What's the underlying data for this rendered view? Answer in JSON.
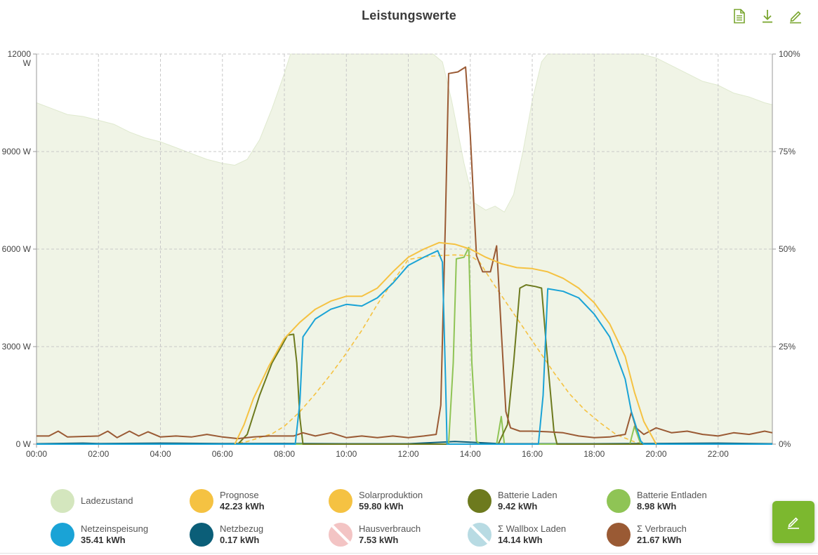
{
  "header": {
    "title": "Leistungswerte",
    "tools": [
      {
        "name": "document-icon"
      },
      {
        "name": "download-icon"
      },
      {
        "name": "edit-icon"
      }
    ]
  },
  "colors": {
    "ladezustand": "#d4e6be",
    "prognose": "#f5c242",
    "solar": "#f5c242",
    "batterie_laden": "#6d7a1e",
    "batterie_entladen": "#8fc455",
    "netzeinspeisung": "#1aa3d6",
    "netzbezug": "#0b5e78",
    "hausverbrauch": "#f3c4c4",
    "wallbox": "#b8dbe3",
    "verbrauch": "#9a5a34",
    "accent": "#7cb82f"
  },
  "chart_data": {
    "type": "line",
    "x_unit": "hour",
    "xlim": [
      0,
      23.75
    ],
    "x_ticks": [
      "00:00",
      "02:00",
      "04:00",
      "06:00",
      "08:00",
      "10:00",
      "12:00",
      "14:00",
      "16:00",
      "18:00",
      "20:00",
      "22:00"
    ],
    "y_left": {
      "lim": [
        0,
        12000
      ],
      "ticks": [
        "0 W",
        "3000 W",
        "6000 W",
        "9000 W",
        "12000\nW"
      ]
    },
    "y_right": {
      "lim": [
        0,
        100
      ],
      "ticks": [
        "0%",
        "25%",
        "50%",
        "75%",
        "100%"
      ]
    },
    "grid": true,
    "series": [
      {
        "name": "Ladezustand",
        "axis": "right",
        "style": "area",
        "color_key": "ladezustand",
        "points": [
          [
            0,
            87.5
          ],
          [
            0.5,
            86
          ],
          [
            1,
            84.5
          ],
          [
            1.5,
            84
          ],
          [
            2,
            83
          ],
          [
            2.5,
            82
          ],
          [
            3,
            80
          ],
          [
            3.5,
            78.5
          ],
          [
            4,
            77.5
          ],
          [
            4.5,
            76
          ],
          [
            5,
            74.5
          ],
          [
            5.5,
            73
          ],
          [
            6,
            72
          ],
          [
            6.4,
            71.5
          ],
          [
            6.8,
            73
          ],
          [
            7.2,
            78
          ],
          [
            7.6,
            86
          ],
          [
            8,
            95
          ],
          [
            8.2,
            100
          ],
          [
            12.8,
            100
          ],
          [
            13.1,
            98
          ],
          [
            13.4,
            88
          ],
          [
            13.8,
            72
          ],
          [
            14.1,
            62
          ],
          [
            14.5,
            60
          ],
          [
            14.8,
            61
          ],
          [
            15.1,
            59.5
          ],
          [
            15.4,
            64
          ],
          [
            15.7,
            75
          ],
          [
            16,
            88
          ],
          [
            16.3,
            98
          ],
          [
            16.5,
            100
          ],
          [
            19.5,
            100
          ],
          [
            20,
            99
          ],
          [
            20.5,
            97
          ],
          [
            21,
            95
          ],
          [
            21.5,
            93
          ],
          [
            22,
            92
          ],
          [
            22.5,
            90
          ],
          [
            23,
            89
          ],
          [
            23.5,
            87.5
          ],
          [
            23.75,
            87
          ]
        ]
      },
      {
        "name": "Prognose",
        "axis": "left",
        "style": "dashed",
        "color_key": "prognose",
        "points": [
          [
            6.3,
            0
          ],
          [
            6.8,
            80
          ],
          [
            7.2,
            200
          ],
          [
            7.6,
            320
          ],
          [
            8,
            550
          ],
          [
            8.5,
            1000
          ],
          [
            9,
            1550
          ],
          [
            9.5,
            2150
          ],
          [
            10,
            2800
          ],
          [
            10.5,
            3500
          ],
          [
            11,
            4300
          ],
          [
            11.5,
            5000
          ],
          [
            12,
            5680
          ],
          [
            12.5,
            5760
          ],
          [
            13,
            5800
          ],
          [
            13.5,
            5820
          ],
          [
            14,
            5800
          ],
          [
            14.3,
            5600
          ],
          [
            14.7,
            5000
          ],
          [
            15.2,
            4300
          ],
          [
            15.7,
            3600
          ],
          [
            16.2,
            2900
          ],
          [
            16.7,
            2200
          ],
          [
            17.2,
            1550
          ],
          [
            17.7,
            1050
          ],
          [
            18.2,
            650
          ],
          [
            18.7,
            300
          ],
          [
            19.3,
            70
          ],
          [
            19.6,
            0
          ]
        ]
      },
      {
        "name": "Solarproduktion",
        "axis": "left",
        "style": "solid",
        "color_key": "solar",
        "points": [
          [
            6.4,
            0
          ],
          [
            6.7,
            600
          ],
          [
            7,
            1400
          ],
          [
            7.5,
            2400
          ],
          [
            8,
            3250
          ],
          [
            8.5,
            3750
          ],
          [
            9,
            4150
          ],
          [
            9.5,
            4400
          ],
          [
            10,
            4550
          ],
          [
            10.5,
            4550
          ],
          [
            11,
            4800
          ],
          [
            11.5,
            5300
          ],
          [
            12,
            5750
          ],
          [
            12.5,
            6000
          ],
          [
            13,
            6200
          ],
          [
            13.5,
            6150
          ],
          [
            14,
            6000
          ],
          [
            14.5,
            5750
          ],
          [
            15,
            5550
          ],
          [
            15.5,
            5430
          ],
          [
            16,
            5400
          ],
          [
            16.5,
            5300
          ],
          [
            17,
            5100
          ],
          [
            17.5,
            4800
          ],
          [
            18,
            4350
          ],
          [
            18.5,
            3700
          ],
          [
            19,
            2700
          ],
          [
            19.3,
            1600
          ],
          [
            19.6,
            700
          ],
          [
            20,
            0
          ]
        ]
      },
      {
        "name": "Netzeinspeisung",
        "axis": "left",
        "style": "solid",
        "color_key": "netzeinspeisung",
        "points": [
          [
            0,
            0
          ],
          [
            8.35,
            0
          ],
          [
            8.5,
            1300
          ],
          [
            8.6,
            3300
          ],
          [
            9,
            3850
          ],
          [
            9.5,
            4150
          ],
          [
            10,
            4300
          ],
          [
            10.5,
            4250
          ],
          [
            11,
            4500
          ],
          [
            11.5,
            4950
          ],
          [
            12,
            5500
          ],
          [
            12.5,
            5750
          ],
          [
            12.95,
            5950
          ],
          [
            13.1,
            5600
          ],
          [
            13.2,
            2000
          ],
          [
            13.25,
            0
          ],
          [
            16.2,
            0
          ],
          [
            16.35,
            1500
          ],
          [
            16.5,
            4780
          ],
          [
            17,
            4700
          ],
          [
            17.5,
            4500
          ],
          [
            18,
            4000
          ],
          [
            18.5,
            3300
          ],
          [
            19,
            2000
          ],
          [
            19.2,
            1000
          ],
          [
            19.5,
            100
          ],
          [
            19.6,
            0
          ],
          [
            23.75,
            0
          ]
        ]
      },
      {
        "name": "Netzbezug",
        "axis": "left",
        "style": "solid",
        "color_key": "netzbezug",
        "points": [
          [
            0,
            10
          ],
          [
            1.5,
            30
          ],
          [
            2,
            15
          ],
          [
            4,
            30
          ],
          [
            6,
            15
          ],
          [
            8,
            20
          ],
          [
            10,
            10
          ],
          [
            12,
            10
          ],
          [
            13.5,
            80
          ],
          [
            14,
            60
          ],
          [
            15,
            10
          ],
          [
            16,
            10
          ],
          [
            18,
            10
          ],
          [
            20,
            20
          ],
          [
            22,
            30
          ],
          [
            23.75,
            10
          ]
        ]
      },
      {
        "name": "Batterie Laden",
        "axis": "left",
        "style": "solid",
        "color_key": "batterie_laden",
        "points": [
          [
            0,
            0
          ],
          [
            6.5,
            0
          ],
          [
            6.8,
            300
          ],
          [
            7.2,
            1500
          ],
          [
            7.6,
            2500
          ],
          [
            7.9,
            3000
          ],
          [
            8.1,
            3350
          ],
          [
            8.3,
            3380
          ],
          [
            8.4,
            2500
          ],
          [
            8.5,
            800
          ],
          [
            8.6,
            0
          ],
          [
            14.9,
            0
          ],
          [
            15.2,
            600
          ],
          [
            15.4,
            2500
          ],
          [
            15.6,
            4800
          ],
          [
            15.8,
            4900
          ],
          [
            16.1,
            4850
          ],
          [
            16.3,
            4800
          ],
          [
            16.5,
            2500
          ],
          [
            16.7,
            400
          ],
          [
            16.8,
            0
          ],
          [
            23.75,
            0
          ]
        ]
      },
      {
        "name": "Batterie Entladen",
        "axis": "left",
        "style": "solid",
        "color_key": "batterie_entladen",
        "points": [
          [
            0,
            0
          ],
          [
            13.3,
            0
          ],
          [
            13.45,
            2500
          ],
          [
            13.55,
            5700
          ],
          [
            13.8,
            5750
          ],
          [
            13.95,
            6050
          ],
          [
            14.05,
            2500
          ],
          [
            14.2,
            100
          ],
          [
            14.3,
            0
          ],
          [
            14.85,
            0
          ],
          [
            15,
            850
          ],
          [
            15.1,
            0
          ],
          [
            19.15,
            0
          ],
          [
            19.3,
            550
          ],
          [
            19.5,
            0
          ],
          [
            23.75,
            0
          ]
        ]
      },
      {
        "name": "Σ Verbrauch",
        "axis": "left",
        "style": "solid",
        "color_key": "verbrauch",
        "points": [
          [
            0,
            250
          ],
          [
            0.4,
            250
          ],
          [
            0.7,
            400
          ],
          [
            1,
            220
          ],
          [
            2,
            250
          ],
          [
            2.3,
            400
          ],
          [
            2.6,
            200
          ],
          [
            3,
            400
          ],
          [
            3.3,
            250
          ],
          [
            3.6,
            380
          ],
          [
            4,
            220
          ],
          [
            4.5,
            250
          ],
          [
            5,
            220
          ],
          [
            5.5,
            300
          ],
          [
            6,
            220
          ],
          [
            6.5,
            170
          ],
          [
            7,
            220
          ],
          [
            7.5,
            250
          ],
          [
            8,
            250
          ],
          [
            8.3,
            250
          ],
          [
            8.6,
            350
          ],
          [
            9,
            250
          ],
          [
            9.5,
            350
          ],
          [
            10,
            200
          ],
          [
            10.5,
            250
          ],
          [
            11,
            200
          ],
          [
            11.5,
            250
          ],
          [
            12,
            200
          ],
          [
            12.5,
            250
          ],
          [
            12.9,
            300
          ],
          [
            13.05,
            1200
          ],
          [
            13.2,
            7000
          ],
          [
            13.3,
            11400
          ],
          [
            13.6,
            11450
          ],
          [
            13.85,
            11600
          ],
          [
            14,
            9500
          ],
          [
            14.2,
            5800
          ],
          [
            14.4,
            5300
          ],
          [
            14.65,
            5300
          ],
          [
            14.85,
            6100
          ],
          [
            15.0,
            3500
          ],
          [
            15.15,
            1000
          ],
          [
            15.3,
            500
          ],
          [
            15.6,
            400
          ],
          [
            16,
            400
          ],
          [
            16.5,
            380
          ],
          [
            17,
            350
          ],
          [
            17.5,
            250
          ],
          [
            18,
            200
          ],
          [
            18.5,
            220
          ],
          [
            19,
            300
          ],
          [
            19.2,
            980
          ],
          [
            19.35,
            500
          ],
          [
            19.6,
            300
          ],
          [
            20,
            500
          ],
          [
            20.5,
            350
          ],
          [
            21,
            400
          ],
          [
            21.5,
            300
          ],
          [
            22,
            250
          ],
          [
            22.5,
            350
          ],
          [
            23,
            300
          ],
          [
            23.5,
            400
          ],
          [
            23.75,
            350
          ]
        ]
      }
    ]
  },
  "legend": [
    {
      "name": "Ladezustand",
      "value": "",
      "color_key": "ladezustand",
      "disabled": false
    },
    {
      "name": "Prognose",
      "value": "42.23 kWh",
      "color_key": "prognose",
      "disabled": false
    },
    {
      "name": "Solarproduktion",
      "value": "59.80 kWh",
      "color_key": "solar",
      "disabled": false
    },
    {
      "name": "Batterie Laden",
      "value": "9.42 kWh",
      "color_key": "batterie_laden",
      "disabled": false
    },
    {
      "name": "Batterie Entladen",
      "value": "8.98 kWh",
      "color_key": "batterie_entladen",
      "disabled": false
    },
    {
      "name": "Netzeinspeisung",
      "value": "35.41 kWh",
      "color_key": "netzeinspeisung",
      "disabled": false
    },
    {
      "name": "Netzbezug",
      "value": "0.17 kWh",
      "color_key": "netzbezug",
      "disabled": false
    },
    {
      "name": "Hausverbrauch",
      "value": "7.53 kWh",
      "color_key": "hausverbrauch",
      "disabled": true
    },
    {
      "name": "Σ Wallbox Laden",
      "value": "14.14 kWh",
      "color_key": "wallbox",
      "disabled": true
    },
    {
      "name": "Σ Verbrauch",
      "value": "21.67 kWh",
      "color_key": "verbrauch",
      "disabled": false
    }
  ],
  "fab": {
    "icon": "pencil-icon"
  }
}
